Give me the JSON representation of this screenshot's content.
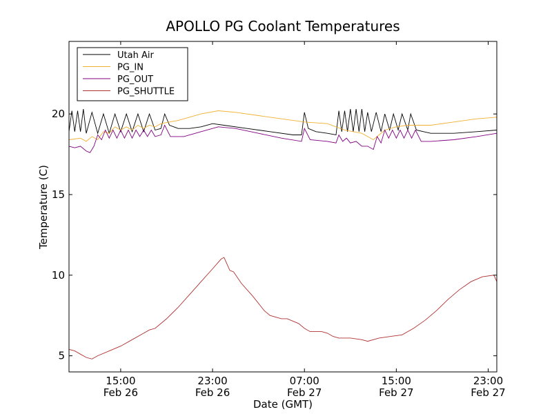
{
  "chart_data": {
    "type": "line",
    "title": "APOLLO PG Coolant Temperatures",
    "xlabel": "Date (GMT)",
    "ylabel": "Temperature (C)",
    "xlim": [
      "2013-02-26T10:30",
      "2013-02-27T23:45"
    ],
    "ylim": [
      4,
      24.5
    ],
    "x_ticks": [
      {
        "time": "2013-02-26T15:00",
        "line1": "15:00",
        "line2": "Feb 26"
      },
      {
        "time": "2013-02-26T23:00",
        "line1": "23:00",
        "line2": "Feb 26"
      },
      {
        "time": "2013-02-27T07:00",
        "line1": "07:00",
        "line2": "Feb 27"
      },
      {
        "time": "2013-02-27T15:00",
        "line1": "15:00",
        "line2": "Feb 27"
      },
      {
        "time": "2013-02-27T23:00",
        "line1": "23:00",
        "line2": "Feb 27"
      }
    ],
    "y_ticks": [
      5,
      10,
      15,
      20
    ],
    "grid": false,
    "legend_position": "top-left",
    "series": [
      {
        "name": "Utah Air",
        "color": "#000000",
        "points": [
          [
            "2013-02-26T10:30",
            18.9
          ],
          [
            "2013-02-26T10:45",
            20.2
          ],
          [
            "2013-02-26T11:00",
            18.9
          ],
          [
            "2013-02-26T11:15",
            20.2
          ],
          [
            "2013-02-26T11:30",
            18.9
          ],
          [
            "2013-02-26T11:45",
            20.3
          ],
          [
            "2013-02-26T12:00",
            18.8
          ],
          [
            "2013-02-26T12:30",
            20.1
          ],
          [
            "2013-02-26T13:00",
            18.8
          ],
          [
            "2013-02-26T13:30",
            20.0
          ],
          [
            "2013-02-26T14:00",
            18.8
          ],
          [
            "2013-02-26T14:30",
            20.0
          ],
          [
            "2013-02-26T15:00",
            18.9
          ],
          [
            "2013-02-26T15:30",
            20.0
          ],
          [
            "2013-02-26T16:00",
            18.9
          ],
          [
            "2013-02-26T16:30",
            20.0
          ],
          [
            "2013-02-26T17:00",
            18.9
          ],
          [
            "2013-02-26T17:30",
            20.0
          ],
          [
            "2013-02-26T18:00",
            19.0
          ],
          [
            "2013-02-26T18:30",
            19.1
          ],
          [
            "2013-02-26T18:50",
            20.0
          ],
          [
            "2013-02-26T19:15",
            19.3
          ],
          [
            "2013-02-26T20:00",
            19.1
          ],
          [
            "2013-02-26T21:00",
            19.1
          ],
          [
            "2013-02-26T22:00",
            19.2
          ],
          [
            "2013-02-26T23:00",
            19.4
          ],
          [
            "2013-02-27T00:00",
            19.3
          ],
          [
            "2013-02-27T02:00",
            19.1
          ],
          [
            "2013-02-27T04:00",
            18.9
          ],
          [
            "2013-02-27T06:00",
            18.7
          ],
          [
            "2013-02-27T06:45",
            18.7
          ],
          [
            "2013-02-27T07:00",
            20.1
          ],
          [
            "2013-02-27T07:20",
            19.1
          ],
          [
            "2013-02-27T08:00",
            18.9
          ],
          [
            "2013-02-27T09:00",
            18.8
          ],
          [
            "2013-02-27T09:45",
            18.7
          ],
          [
            "2013-02-27T10:00",
            20.2
          ],
          [
            "2013-02-27T10:15",
            18.9
          ],
          [
            "2013-02-27T10:30",
            20.2
          ],
          [
            "2013-02-27T10:45",
            18.9
          ],
          [
            "2013-02-27T11:00",
            20.3
          ],
          [
            "2013-02-27T11:15",
            18.9
          ],
          [
            "2013-02-27T11:30",
            20.3
          ],
          [
            "2013-02-27T11:45",
            18.9
          ],
          [
            "2013-02-27T12:00",
            20.3
          ],
          [
            "2013-02-27T12:15",
            18.9
          ],
          [
            "2013-02-27T12:30",
            20.1
          ],
          [
            "2013-02-27T12:50",
            18.9
          ],
          [
            "2013-02-27T13:15",
            20.1
          ],
          [
            "2013-02-27T13:40",
            18.9
          ],
          [
            "2013-02-27T14:00",
            20.0
          ],
          [
            "2013-02-27T14:25",
            19.0
          ],
          [
            "2013-02-27T14:45",
            20.0
          ],
          [
            "2013-02-27T15:10",
            19.0
          ],
          [
            "2013-02-27T15:30",
            20.0
          ],
          [
            "2013-02-27T16:00",
            19.0
          ],
          [
            "2013-02-27T16:15",
            20.0
          ],
          [
            "2013-02-27T16:45",
            19.0
          ],
          [
            "2013-02-27T18:00",
            18.8
          ],
          [
            "2013-02-27T20:00",
            18.8
          ],
          [
            "2013-02-27T22:00",
            18.9
          ],
          [
            "2013-02-27T23:45",
            19.0
          ]
        ]
      },
      {
        "name": "PG_IN",
        "color": "#f0b030",
        "points": [
          [
            "2013-02-26T10:30",
            18.4
          ],
          [
            "2013-02-26T11:30",
            18.5
          ],
          [
            "2013-02-26T12:00",
            18.3
          ],
          [
            "2013-02-26T12:30",
            18.6
          ],
          [
            "2013-02-26T13:00",
            18.4
          ],
          [
            "2013-02-26T13:30",
            18.9
          ],
          [
            "2013-02-26T14:00",
            18.8
          ],
          [
            "2013-02-26T14:30",
            19.2
          ],
          [
            "2013-02-26T15:00",
            19.0
          ],
          [
            "2013-02-26T15:30",
            19.2
          ],
          [
            "2013-02-26T16:00",
            19.0
          ],
          [
            "2013-02-26T16:30",
            19.3
          ],
          [
            "2013-02-26T17:00",
            19.1
          ],
          [
            "2013-02-26T17:30",
            19.3
          ],
          [
            "2013-02-26T18:00",
            19.2
          ],
          [
            "2013-02-26T18:30",
            19.4
          ],
          [
            "2013-02-26T20:00",
            19.6
          ],
          [
            "2013-02-26T22:00",
            20.0
          ],
          [
            "2013-02-26T23:30",
            20.2
          ],
          [
            "2013-02-27T01:00",
            20.1
          ],
          [
            "2013-02-27T03:00",
            19.9
          ],
          [
            "2013-02-27T05:00",
            19.7
          ],
          [
            "2013-02-27T07:00",
            19.5
          ],
          [
            "2013-02-27T09:00",
            19.4
          ],
          [
            "2013-02-27T10:30",
            19.0
          ],
          [
            "2013-02-27T12:00",
            18.8
          ],
          [
            "2013-02-27T13:00",
            18.4
          ],
          [
            "2013-02-27T13:30",
            18.7
          ],
          [
            "2013-02-27T14:00",
            19.0
          ],
          [
            "2013-02-27T15:00",
            19.2
          ],
          [
            "2013-02-27T16:00",
            19.3
          ],
          [
            "2013-02-27T18:00",
            19.3
          ],
          [
            "2013-02-27T20:00",
            19.5
          ],
          [
            "2013-02-27T22:00",
            19.7
          ],
          [
            "2013-02-27T23:45",
            19.8
          ]
        ]
      },
      {
        "name": "PG_OUT",
        "color": "#800080",
        "points": [
          [
            "2013-02-26T10:30",
            18.0
          ],
          [
            "2013-02-26T11:00",
            17.9
          ],
          [
            "2013-02-26T11:30",
            18.0
          ],
          [
            "2013-02-26T12:00",
            17.7
          ],
          [
            "2013-02-26T12:20",
            17.6
          ],
          [
            "2013-02-26T12:40",
            18.0
          ],
          [
            "2013-02-26T13:00",
            18.7
          ],
          [
            "2013-02-26T13:20",
            18.4
          ],
          [
            "2013-02-26T13:40",
            19.0
          ],
          [
            "2013-02-26T14:00",
            18.5
          ],
          [
            "2013-02-26T14:20",
            19.0
          ],
          [
            "2013-02-26T14:40",
            18.5
          ],
          [
            "2013-02-26T15:00",
            19.0
          ],
          [
            "2013-02-26T15:20",
            18.5
          ],
          [
            "2013-02-26T15:40",
            19.0
          ],
          [
            "2013-02-26T16:00",
            18.5
          ],
          [
            "2013-02-26T16:20",
            19.0
          ],
          [
            "2013-02-26T16:40",
            18.6
          ],
          [
            "2013-02-26T17:00",
            19.0
          ],
          [
            "2013-02-26T17:20",
            18.6
          ],
          [
            "2013-02-26T17:40",
            19.0
          ],
          [
            "2013-02-26T18:00",
            18.6
          ],
          [
            "2013-02-26T18:30",
            18.7
          ],
          [
            "2013-02-26T18:50",
            19.3
          ],
          [
            "2013-02-26T19:20",
            18.6
          ],
          [
            "2013-02-26T20:30",
            18.6
          ],
          [
            "2013-02-26T22:00",
            18.9
          ],
          [
            "2013-02-26T23:30",
            19.2
          ],
          [
            "2013-02-27T01:00",
            19.1
          ],
          [
            "2013-02-27T03:00",
            18.8
          ],
          [
            "2013-02-27T05:00",
            18.5
          ],
          [
            "2013-02-27T06:45",
            18.3
          ],
          [
            "2013-02-27T07:00",
            19.1
          ],
          [
            "2013-02-27T07:30",
            18.4
          ],
          [
            "2013-02-27T09:00",
            18.3
          ],
          [
            "2013-02-27T09:45",
            18.2
          ],
          [
            "2013-02-27T10:00",
            18.7
          ],
          [
            "2013-02-27T10:20",
            18.3
          ],
          [
            "2013-02-27T10:40",
            18.5
          ],
          [
            "2013-02-27T11:00",
            18.2
          ],
          [
            "2013-02-27T11:30",
            18.3
          ],
          [
            "2013-02-27T12:00",
            18.0
          ],
          [
            "2013-02-27T12:30",
            18.0
          ],
          [
            "2013-02-27T13:00",
            17.8
          ],
          [
            "2013-02-27T13:20",
            18.6
          ],
          [
            "2013-02-27T13:40",
            18.2
          ],
          [
            "2013-02-27T14:00",
            19.0
          ],
          [
            "2013-02-27T14:20",
            18.5
          ],
          [
            "2013-02-27T14:40",
            19.0
          ],
          [
            "2013-02-27T15:00",
            18.5
          ],
          [
            "2013-02-27T15:20",
            19.0
          ],
          [
            "2013-02-27T15:40",
            18.5
          ],
          [
            "2013-02-27T16:00",
            19.0
          ],
          [
            "2013-02-27T16:20",
            18.5
          ],
          [
            "2013-02-27T16:40",
            19.0
          ],
          [
            "2013-02-27T17:10",
            18.3
          ],
          [
            "2013-02-27T18:00",
            18.3
          ],
          [
            "2013-02-27T20:00",
            18.4
          ],
          [
            "2013-02-27T22:00",
            18.6
          ],
          [
            "2013-02-27T23:45",
            18.8
          ]
        ]
      },
      {
        "name": "PG_SHUTTLE",
        "color": "#b03030",
        "points": [
          [
            "2013-02-26T10:30",
            5.4
          ],
          [
            "2013-02-26T11:00",
            5.3
          ],
          [
            "2013-02-26T11:30",
            5.1
          ],
          [
            "2013-02-26T12:00",
            4.9
          ],
          [
            "2013-02-26T12:30",
            4.8
          ],
          [
            "2013-02-26T13:00",
            5.0
          ],
          [
            "2013-02-26T14:00",
            5.3
          ],
          [
            "2013-02-26T15:00",
            5.6
          ],
          [
            "2013-02-26T16:00",
            6.0
          ],
          [
            "2013-02-26T17:00",
            6.4
          ],
          [
            "2013-02-26T17:30",
            6.6
          ],
          [
            "2013-02-26T18:00",
            6.7
          ],
          [
            "2013-02-26T19:00",
            7.3
          ],
          [
            "2013-02-26T20:00",
            8.0
          ],
          [
            "2013-02-26T21:00",
            8.8
          ],
          [
            "2013-02-26T22:00",
            9.6
          ],
          [
            "2013-02-26T23:00",
            10.4
          ],
          [
            "2013-02-26T23:45",
            11.0
          ],
          [
            "2013-02-27T00:00",
            11.1
          ],
          [
            "2013-02-27T00:30",
            10.3
          ],
          [
            "2013-02-27T00:50",
            10.2
          ],
          [
            "2013-02-27T01:30",
            9.5
          ],
          [
            "2013-02-27T02:30",
            8.7
          ],
          [
            "2013-02-27T03:30",
            7.8
          ],
          [
            "2013-02-27T04:00",
            7.5
          ],
          [
            "2013-02-27T05:00",
            7.3
          ],
          [
            "2013-02-27T05:30",
            7.3
          ],
          [
            "2013-02-27T06:30",
            7.0
          ],
          [
            "2013-02-27T07:00",
            6.7
          ],
          [
            "2013-02-27T07:30",
            6.5
          ],
          [
            "2013-02-27T08:30",
            6.5
          ],
          [
            "2013-02-27T09:00",
            6.4
          ],
          [
            "2013-02-27T09:30",
            6.2
          ],
          [
            "2013-02-27T10:00",
            6.1
          ],
          [
            "2013-02-27T11:00",
            6.1
          ],
          [
            "2013-02-27T12:00",
            6.0
          ],
          [
            "2013-02-27T12:30",
            5.9
          ],
          [
            "2013-02-27T13:30",
            6.1
          ],
          [
            "2013-02-27T14:30",
            6.2
          ],
          [
            "2013-02-27T15:30",
            6.3
          ],
          [
            "2013-02-27T16:30",
            6.7
          ],
          [
            "2013-02-27T17:30",
            7.2
          ],
          [
            "2013-02-27T18:30",
            7.8
          ],
          [
            "2013-02-27T19:30",
            8.5
          ],
          [
            "2013-02-27T20:30",
            9.1
          ],
          [
            "2013-02-27T21:30",
            9.6
          ],
          [
            "2013-02-27T22:30",
            9.9
          ],
          [
            "2013-02-27T23:30",
            10.0
          ],
          [
            "2013-02-27T23:45",
            9.6
          ]
        ]
      }
    ]
  }
}
